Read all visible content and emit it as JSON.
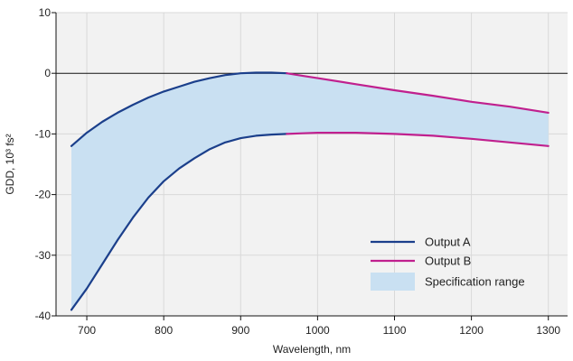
{
  "chart_data": {
    "type": "line",
    "xlabel": "Wavelength, nm",
    "ylabel": "GDD, 10³ fs²",
    "xlim": [
      660,
      1325
    ],
    "ylim": [
      -40,
      10
    ],
    "xticks": [
      700,
      800,
      900,
      1000,
      1100,
      1200,
      1300
    ],
    "yticks": [
      10,
      0,
      -10,
      -20,
      -30,
      -40
    ],
    "grid": true,
    "legend_position": "bottom-right",
    "colors": {
      "output_a": "#1b3f8b",
      "output_b": "#c0208e",
      "spec_fill": "#c9e0f2",
      "grid": "#d9d9d9",
      "plot_bg": "#f2f2f2"
    },
    "spec_range": {
      "x": [
        680,
        700,
        720,
        740,
        760,
        780,
        800,
        820,
        840,
        860,
        880,
        900,
        920,
        940,
        960,
        980,
        1000,
        1050,
        1100,
        1150,
        1200,
        1250,
        1300
      ],
      "upper": [
        -12,
        -9.8,
        -8,
        -6.5,
        -5.2,
        -4,
        -3,
        -2.2,
        -1.4,
        -0.8,
        -0.3,
        0,
        0.1,
        0.1,
        0,
        -0.4,
        -0.8,
        -1.8,
        -2.8,
        -3.7,
        -4.7,
        -5.5,
        -6.5
      ],
      "lower": [
        -39,
        -35.5,
        -31.5,
        -27.5,
        -23.8,
        -20.5,
        -17.8,
        -15.7,
        -14,
        -12.5,
        -11.4,
        -10.7,
        -10.3,
        -10.1,
        -10,
        -9.9,
        -9.8,
        -9.8,
        -10,
        -10.3,
        -10.8,
        -11.4,
        -12
      ]
    },
    "series": [
      {
        "name": "Output A",
        "segments": [
          {
            "x": [
              680,
              700,
              720,
              740,
              760,
              780,
              800,
              820,
              840,
              860,
              880,
              900,
              920,
              940,
              960
            ],
            "y": [
              -12,
              -9.8,
              -8,
              -6.5,
              -5.2,
              -4,
              -3,
              -2.2,
              -1.4,
              -0.8,
              -0.3,
              0,
              0.1,
              0.1,
              0
            ]
          },
          {
            "x": [
              680,
              700,
              720,
              740,
              760,
              780,
              800,
              820,
              840,
              860,
              880,
              900,
              920,
              940,
              960
            ],
            "y": [
              -39,
              -35.5,
              -31.5,
              -27.5,
              -23.8,
              -20.5,
              -17.8,
              -15.7,
              -14,
              -12.5,
              -11.4,
              -10.7,
              -10.3,
              -10.1,
              -10
            ]
          }
        ]
      },
      {
        "name": "Output B",
        "segments": [
          {
            "x": [
              960,
              980,
              1000,
              1050,
              1100,
              1150,
              1200,
              1250,
              1300
            ],
            "y": [
              0,
              -0.4,
              -0.8,
              -1.8,
              -2.8,
              -3.7,
              -4.7,
              -5.5,
              -6.5
            ]
          },
          {
            "x": [
              960,
              980,
              1000,
              1050,
              1100,
              1150,
              1200,
              1250,
              1300
            ],
            "y": [
              -10,
              -9.9,
              -9.8,
              -9.8,
              -10,
              -10.3,
              -10.8,
              -11.4,
              -12
            ]
          }
        ]
      }
    ],
    "legend": [
      {
        "key": "output_a",
        "label": "Output A",
        "kind": "line"
      },
      {
        "key": "output_b",
        "label": "Output B",
        "kind": "line"
      },
      {
        "key": "spec_fill",
        "label": "Specification range",
        "kind": "box"
      }
    ]
  }
}
